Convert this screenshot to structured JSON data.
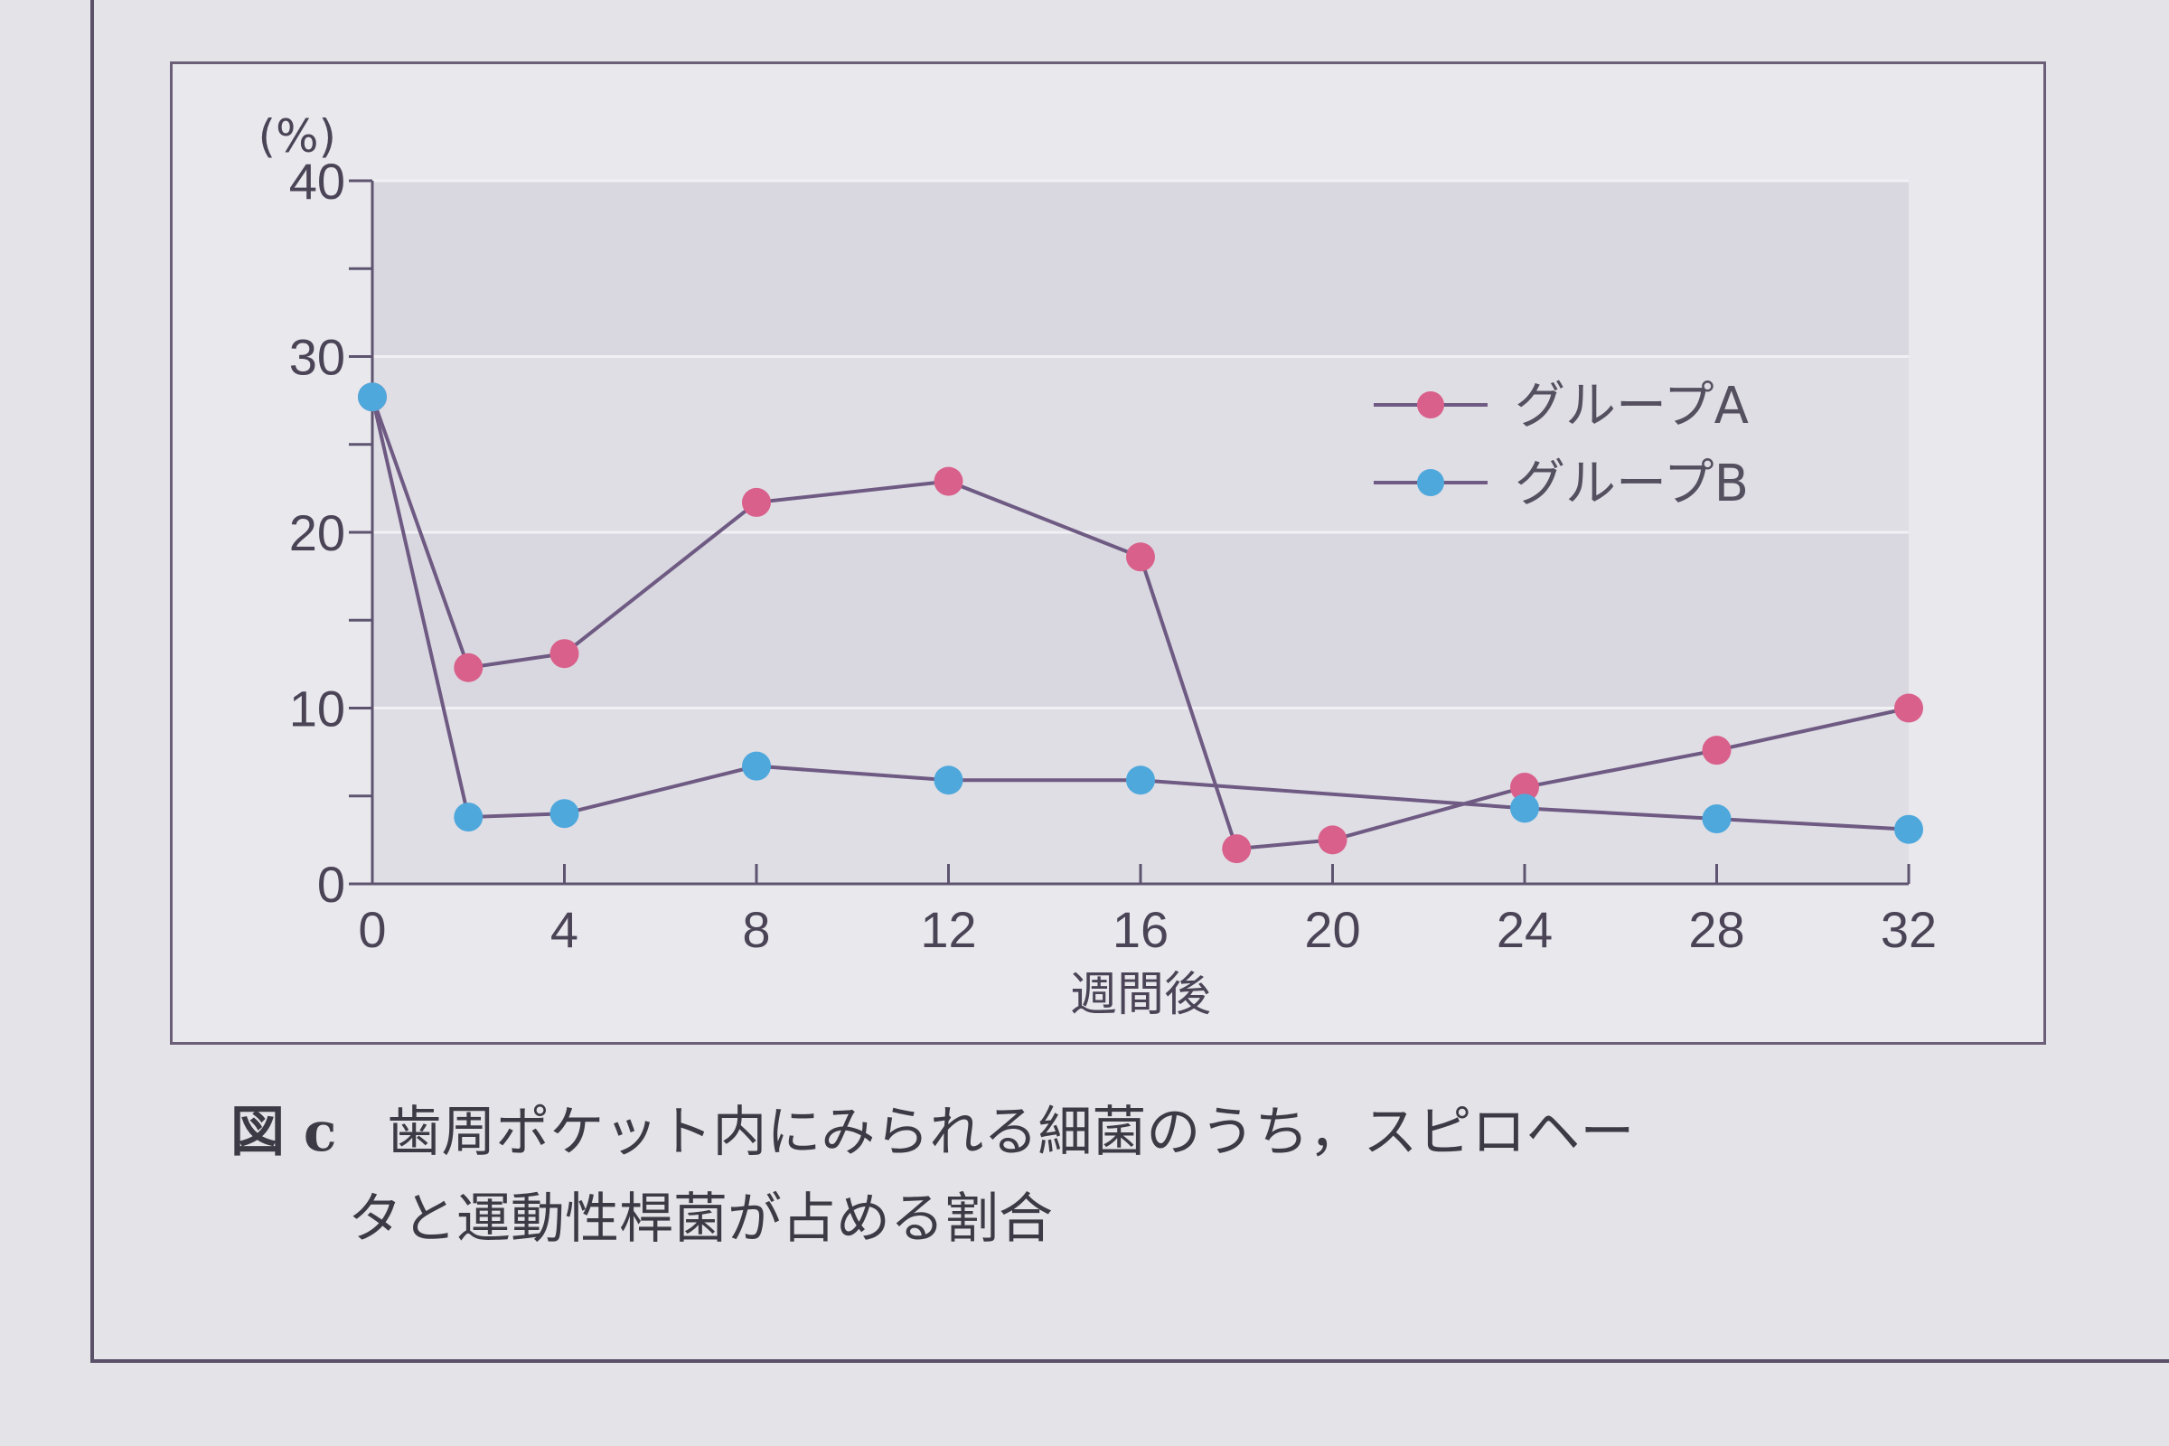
{
  "caption": {
    "label": "図 c",
    "line1": "歯周ポケット内にみられる細菌のうち，スピロヘー",
    "line2": "タと運動性桿菌が占める割合"
  },
  "chart_data": {
    "type": "line",
    "title": "",
    "xlabel": "週間後",
    "ylabel": "(%)",
    "xlim": [
      0,
      32
    ],
    "ylim": [
      0,
      40
    ],
    "x_ticks": [
      0,
      4,
      8,
      12,
      16,
      20,
      24,
      28,
      32
    ],
    "y_ticks": [
      0,
      10,
      20,
      30,
      40
    ],
    "y_minor_ticks": [
      5,
      15,
      25,
      35
    ],
    "grid": true,
    "legend_position": "upper-right",
    "series": [
      {
        "name": "グループA",
        "color": "#d9608a",
        "x": [
          0,
          2,
          4,
          8,
          12,
          16,
          18,
          20,
          24,
          28,
          32
        ],
        "y": [
          27.7,
          12.3,
          13.1,
          21.7,
          22.9,
          18.6,
          2.0,
          2.5,
          5.5,
          7.6,
          10.0
        ]
      },
      {
        "name": "グループB",
        "color": "#4ea8dc",
        "x": [
          0,
          2,
          4,
          8,
          12,
          16,
          24,
          28,
          32
        ],
        "y": [
          27.7,
          3.8,
          4.0,
          6.7,
          5.9,
          5.9,
          4.3,
          3.7,
          3.1
        ]
      }
    ]
  }
}
